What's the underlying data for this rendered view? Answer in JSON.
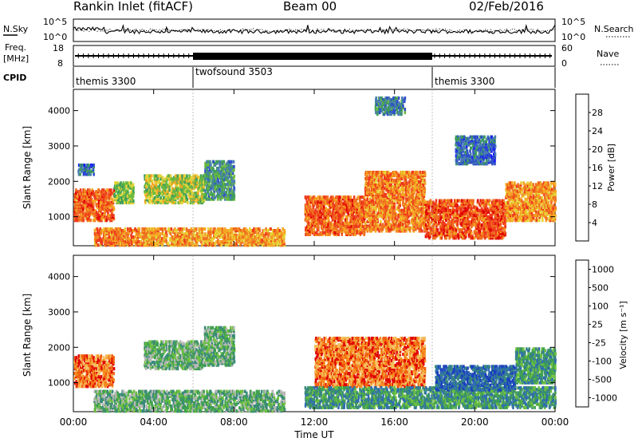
{
  "header": {
    "title": "Rankin Inlet (fitACF)",
    "beam": "Beam 00",
    "date": "02/Feb/2016"
  },
  "noise_panel": {
    "left_label": "N.Sky",
    "right_label": "N.Search",
    "left_ticks": [
      "10^5",
      "10^0"
    ],
    "right_ticks": [
      "10^5",
      "10^0"
    ]
  },
  "freq_panel": {
    "left_label_1": "Freq.",
    "left_label_2": "[MHz]",
    "right_label": "Nave",
    "left_ticks": [
      "18",
      "8"
    ],
    "right_ticks": [
      "60",
      "0"
    ]
  },
  "cpid_panel": {
    "label": "CPID",
    "modes": [
      {
        "name": "themis 3300",
        "start_hour": 0
      },
      {
        "name": "twofsound 3503",
        "start_hour": 6
      },
      {
        "name": "themis 3300",
        "start_hour": 18
      }
    ]
  },
  "x_axis": {
    "label": "Time UT",
    "ticks": [
      "00:00",
      "04:00",
      "08:00",
      "12:00",
      "16:00",
      "20:00",
      "00:00"
    ]
  },
  "chart_data": [
    {
      "type": "heatmap",
      "name": "power",
      "ylabel": "Slant Range [km]",
      "yticks": [
        "1000",
        "2000",
        "3000",
        "4000"
      ],
      "ylim": [
        180,
        4600
      ],
      "xlim_hours": [
        0,
        24
      ],
      "colorbar_label": "Power [dB]",
      "colorbar_ticks": [
        "4",
        "8",
        "12",
        "16",
        "20",
        "24",
        "28"
      ],
      "colorbar_range": [
        0,
        32
      ],
      "colors": [
        "#1a1aff",
        "#3050c8",
        "#4a7fb0",
        "#3f9e5a",
        "#6dbb3e",
        "#e6d53a",
        "#f5a623",
        "#f07020",
        "#ee3a1a",
        "#e00000"
      ],
      "description_blobs": [
        {
          "t0": 0.0,
          "t1": 2.0,
          "r0": 900,
          "r1": 1800,
          "level": 26
        },
        {
          "t0": 0.2,
          "t1": 1.0,
          "r0": 2200,
          "r1": 2500,
          "level": 6
        },
        {
          "t0": 1.0,
          "t1": 4.0,
          "r0": 200,
          "r1": 700,
          "level": 24
        },
        {
          "t0": 2.0,
          "t1": 3.0,
          "r0": 1400,
          "r1": 2000,
          "level": 14
        },
        {
          "t0": 3.5,
          "t1": 6.5,
          "r0": 1400,
          "r1": 2200,
          "level": 16
        },
        {
          "t0": 3.5,
          "t1": 10.5,
          "r0": 200,
          "r1": 700,
          "level": 22
        },
        {
          "t0": 6.5,
          "t1": 8.0,
          "r0": 1500,
          "r1": 2600,
          "level": 10
        },
        {
          "t0": 11.5,
          "t1": 14.5,
          "r0": 500,
          "r1": 1600,
          "level": 26
        },
        {
          "t0": 14.5,
          "t1": 17.5,
          "r0": 600,
          "r1": 2300,
          "level": 24
        },
        {
          "t0": 17.5,
          "t1": 21.5,
          "r0": 400,
          "r1": 1500,
          "level": 27
        },
        {
          "t0": 21.5,
          "t1": 24.0,
          "r0": 900,
          "r1": 2000,
          "level": 23
        },
        {
          "t0": 15.0,
          "t1": 16.5,
          "r0": 3900,
          "r1": 4400,
          "level": 8
        },
        {
          "t0": 19.0,
          "t1": 21.0,
          "r0": 2500,
          "r1": 3300,
          "level": 6
        }
      ]
    },
    {
      "type": "heatmap",
      "name": "velocity",
      "ylabel": "Slant Range [km]",
      "yticks": [
        "1000",
        "2000",
        "3000",
        "4000"
      ],
      "ylim": [
        180,
        4600
      ],
      "xlim_hours": [
        0,
        24
      ],
      "colorbar_label": "Velocity [m s⁻¹]",
      "colorbar_ticks": [
        "1000",
        "500",
        "100",
        "25",
        "-25",
        "-100",
        "-500",
        "-1000"
      ],
      "colors": [
        "#1a3fbf",
        "#2f6db0",
        "#3a8a7a",
        "#3fa050",
        "#6dc040",
        "#b8b8b8",
        "#f5c060",
        "#f59020",
        "#f06010",
        "#e00000"
      ],
      "description_blobs": [
        {
          "t0": 0.0,
          "t1": 2.0,
          "r0": 900,
          "r1": 1800,
          "level": "neg"
        },
        {
          "t0": 1.0,
          "t1": 10.5,
          "r0": 200,
          "r1": 800,
          "level": "pos_small"
        },
        {
          "t0": 3.5,
          "t1": 6.5,
          "r0": 1400,
          "r1": 2200,
          "level": "pos_small"
        },
        {
          "t0": 6.5,
          "t1": 8.0,
          "r0": 1500,
          "r1": 2600,
          "level": "pos_small"
        },
        {
          "t0": 12.0,
          "t1": 17.5,
          "r0": 900,
          "r1": 2300,
          "level": "neg"
        },
        {
          "t0": 11.5,
          "t1": 24.0,
          "r0": 300,
          "r1": 900,
          "level": "pos"
        },
        {
          "t0": 18.0,
          "t1": 22.0,
          "r0": 800,
          "r1": 1500,
          "level": "pos_large"
        },
        {
          "t0": 22.0,
          "t1": 24.0,
          "r0": 1000,
          "r1": 2000,
          "level": "pos"
        }
      ]
    }
  ]
}
